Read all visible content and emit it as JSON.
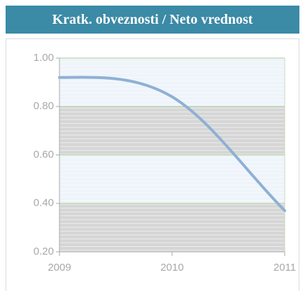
{
  "chart_data": {
    "type": "line",
    "title": "Kratk. obveznosti / Neto vrednost",
    "x": [
      2009,
      2010,
      2011
    ],
    "values": [
      0.92,
      0.84,
      0.37
    ],
    "color": "#8fb0d4",
    "xlim": [
      2009,
      2011
    ],
    "xticks": [
      2009,
      2010,
      2011
    ],
    "ylim": [
      0.2,
      1.0
    ],
    "yticks": [
      {
        "value": 0.2,
        "label": "0.20"
      },
      {
        "value": 0.4,
        "label": "0.40"
      },
      {
        "value": 0.6,
        "label": "0.60"
      },
      {
        "value": 0.8,
        "label": "0.80"
      },
      {
        "value": 1.0,
        "label": "1.00"
      }
    ],
    "grid": true
  }
}
